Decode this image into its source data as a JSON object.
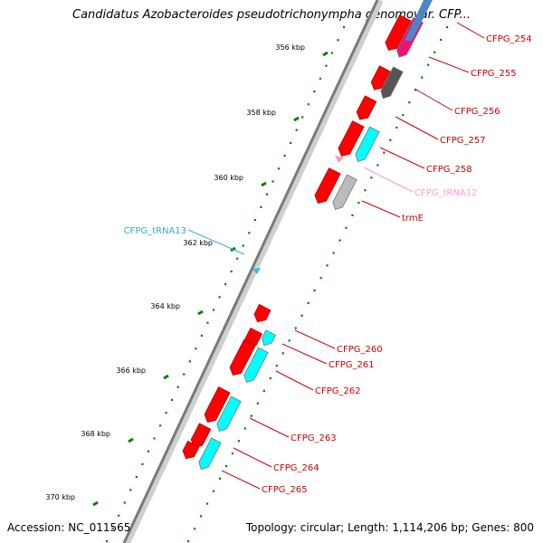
{
  "header": {
    "title": "Candidatus Azobacteroides pseudotrichonympha genomovar. CFP..."
  },
  "footer": {
    "accession": "Accession: NC_011565",
    "summary": "Topology: circular; Length: 1,114,206 bp; Genes: 800"
  },
  "colors": {
    "cds_forward": "#ff0000",
    "cds_reverse": "#00ffff",
    "trna": "#ff99cc",
    "trna_alt": "#33bbee",
    "backbone": "#888888",
    "ticks": "#008000",
    "label_cds": "#cc0000",
    "label_trna": "#ff99cc",
    "label_trna_alt": "#33aadd",
    "ruler_text": "#000000"
  },
  "ruler": {
    "ticks": [
      "356 kbp",
      "358 kbp",
      "360 kbp",
      "362 kbp",
      "364 kbp",
      "366 kbp",
      "368 kbp",
      "370 kbp"
    ]
  },
  "features": [
    {
      "label": "CFPG_254",
      "type": "cds"
    },
    {
      "label": "CFPG_255",
      "type": "cds"
    },
    {
      "label": "CFPG_256",
      "type": "cds"
    },
    {
      "label": "CFPG_257",
      "type": "cds"
    },
    {
      "label": "CFPG_258",
      "type": "cds"
    },
    {
      "label": "CFPG_tRNA12",
      "type": "trna"
    },
    {
      "label": "trmE",
      "type": "cds"
    },
    {
      "label": "CFPG_tRNA13",
      "type": "trna_alt"
    },
    {
      "label": "CFPG_260",
      "type": "cds"
    },
    {
      "label": "CFPG_261",
      "type": "cds"
    },
    {
      "label": "CFPG_262",
      "type": "cds"
    },
    {
      "label": "CFPG_263",
      "type": "cds"
    },
    {
      "label": "CFPG_264",
      "type": "cds"
    },
    {
      "label": "CFPG_265",
      "type": "cds"
    }
  ]
}
